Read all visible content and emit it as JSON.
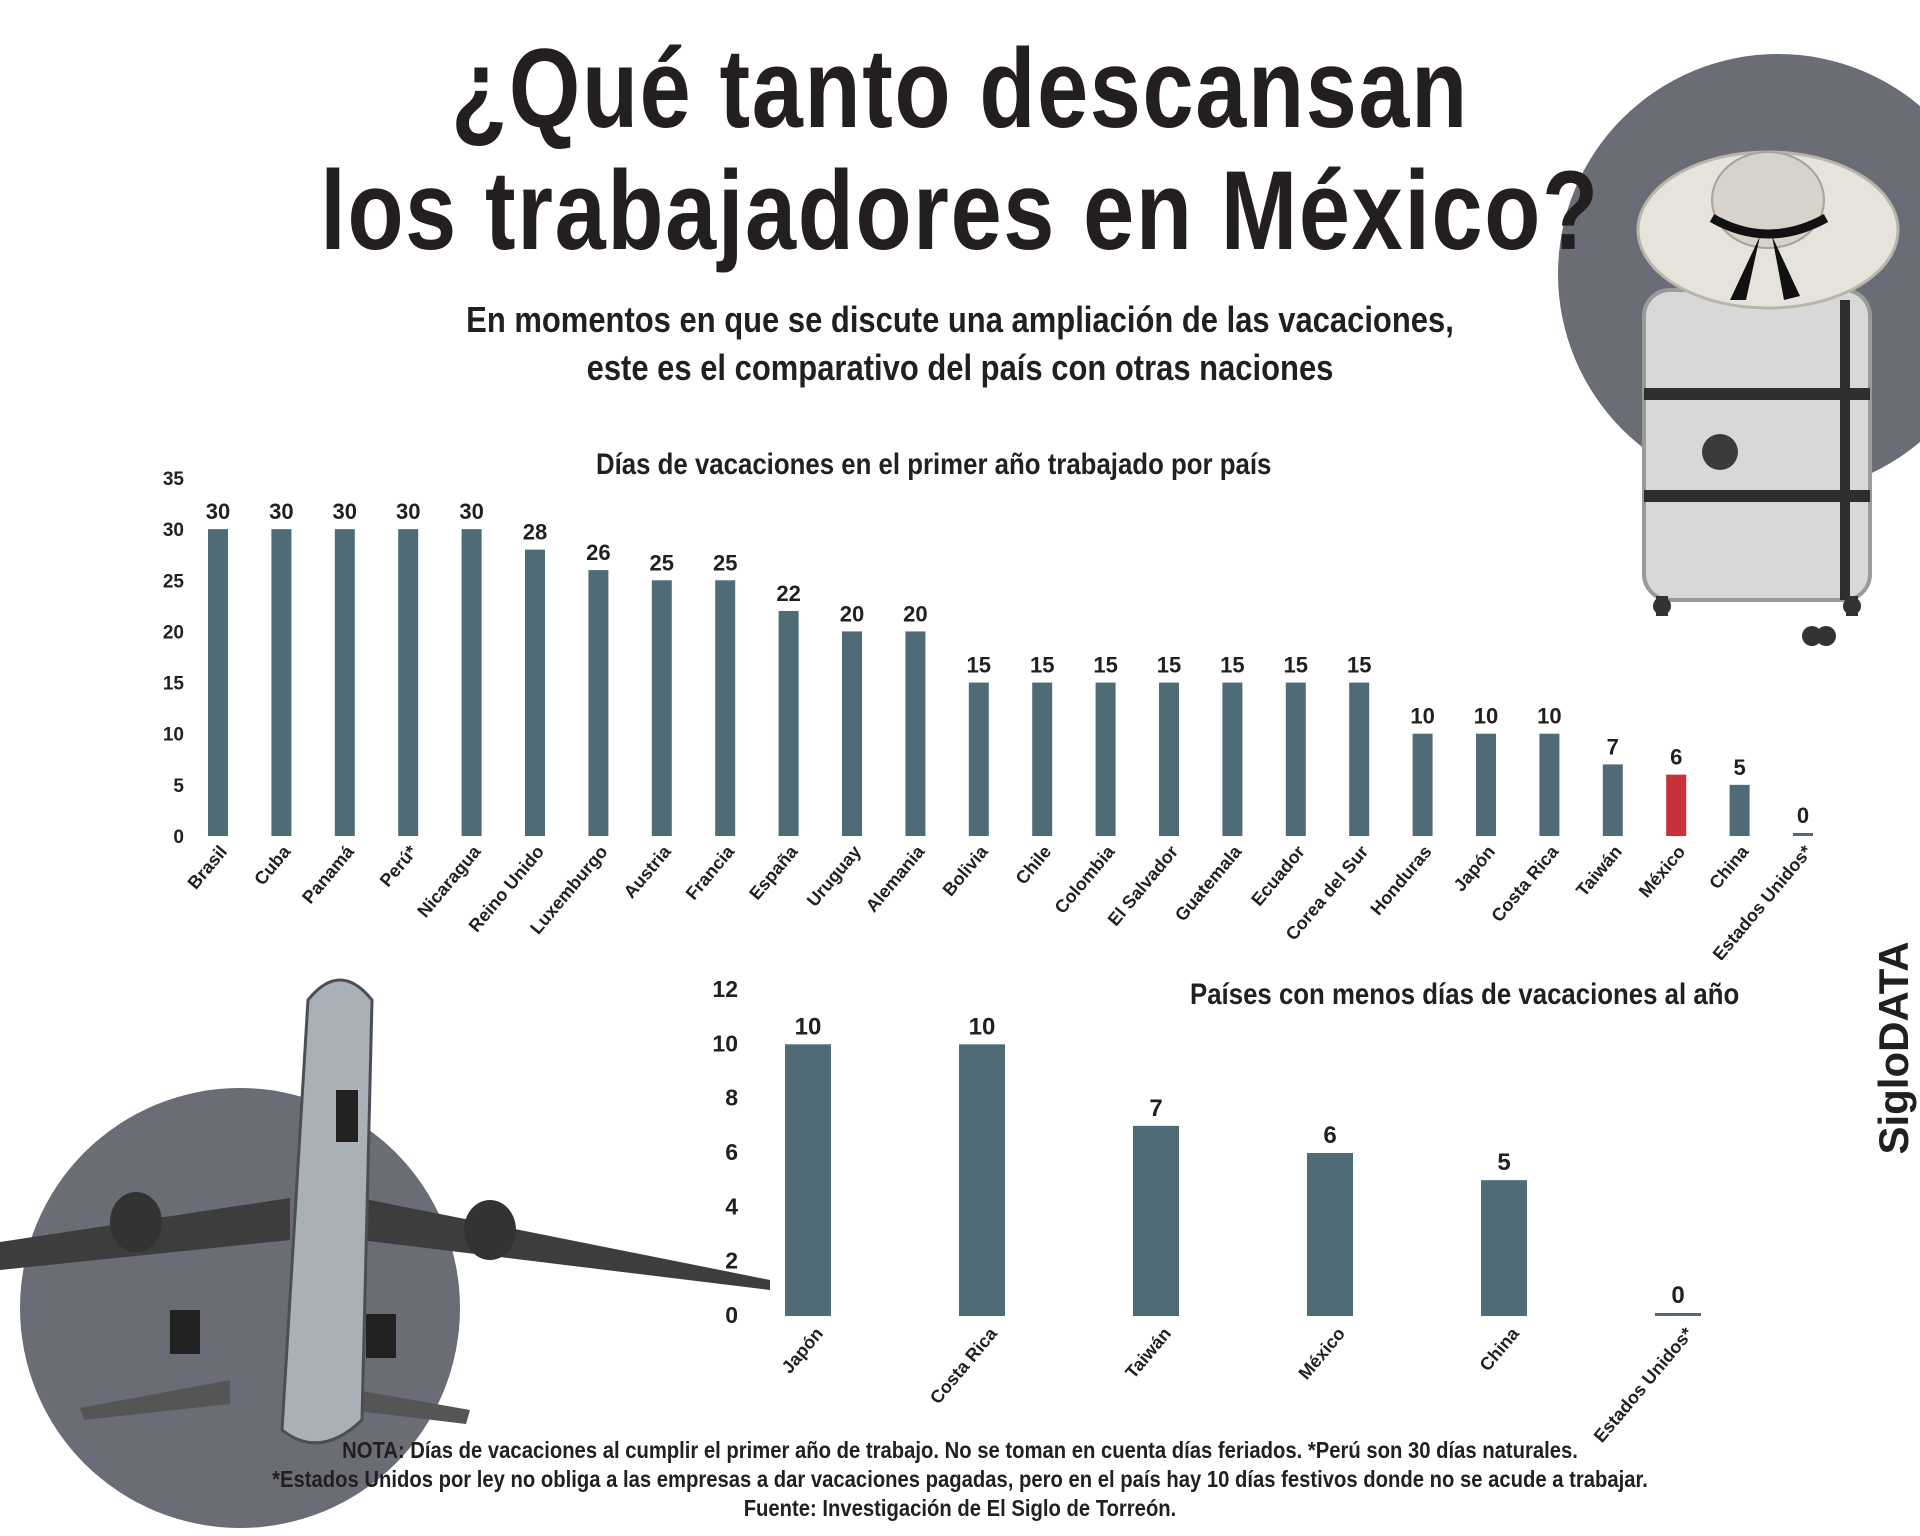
{
  "header": {
    "title_line1": "¿Qué tanto descansan",
    "title_line2": "los trabajadores en México?",
    "subtitle_line1": "En momentos en que se discute una ampliación de las vacaciones,",
    "subtitle_line2": "este es el comparativo del país con otras naciones"
  },
  "chart_data": [
    {
      "type": "bar",
      "title": "Días de vacaciones en el primer año trabajado por país",
      "categories": [
        "Brasil",
        "Cuba",
        "Panamá",
        "Perú*",
        "Nicaragua",
        "Reino Unido",
        "Luxemburgo",
        "Austria",
        "Francia",
        "España",
        "Uruguay",
        "Alemania",
        "Bolivia",
        "Chile",
        "Colombia",
        "El Salvador",
        "Guatemala",
        "Ecuador",
        "Corea del Sur",
        "Honduras",
        "Japón",
        "Costa Rica",
        "Taiwán",
        "México",
        "China",
        "Estados Unidos*"
      ],
      "values": [
        30,
        30,
        30,
        30,
        30,
        28,
        26,
        25,
        25,
        22,
        20,
        20,
        15,
        15,
        15,
        15,
        15,
        15,
        15,
        10,
        10,
        10,
        7,
        6,
        5,
        0
      ],
      "highlight": "México",
      "ylim": [
        0,
        35
      ],
      "yticks": [
        0,
        5,
        10,
        15,
        20,
        25,
        30,
        35
      ],
      "xlabel": "",
      "ylabel": "",
      "grid": false
    },
    {
      "type": "bar",
      "title": "Países con menos días de vacaciones al año",
      "categories": [
        "Japón",
        "Costa Rica",
        "Taiwán",
        "México",
        "China",
        "Estados Unidos*"
      ],
      "values": [
        10,
        10,
        7,
        6,
        5,
        0
      ],
      "ylim": [
        0,
        12
      ],
      "yticks": [
        0,
        2,
        4,
        6,
        8,
        10,
        12
      ],
      "xlabel": "",
      "ylabel": "",
      "grid": false
    }
  ],
  "colors": {
    "bar": "#4e6b76",
    "highlight": "#c8303a",
    "text": "#231f20",
    "deco": "#6a6d75"
  },
  "illustrations": [
    "suitcase-with-straw-hat",
    "airplane-taking-off"
  ],
  "notes": {
    "line1": "NOTA: Días de vacaciones al cumplir el primer año de trabajo. No se toman en cuenta días feriados. *Perú son 30 días naturales.",
    "line2": "*Estados Unidos por ley no obliga a las empresas a dar vacaciones pagadas, pero en el país hay 10 días festivos donde no se acude a trabajar.",
    "source": "Fuente: Investigación de El Siglo de Torreón."
  },
  "brand": "SigloDATA"
}
